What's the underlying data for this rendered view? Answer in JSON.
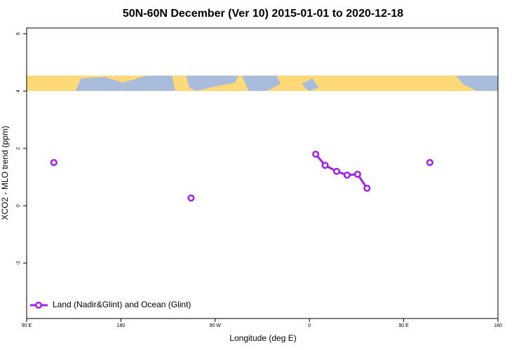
{
  "chart_data": {
    "type": "line",
    "title": "50N-60N December (Ver 10)   2015-01-01 to 2020-12-18",
    "xlabel": "Longitude (deg E)",
    "ylabel": "XCO2 - MLO trend (ppm)",
    "x": [
      -244,
      -180,
      -113,
      -50,
      6,
      15,
      26,
      36,
      46,
      55,
      85,
      115
    ],
    "series": [
      {
        "name": "Land (Nadir&Glint) and Ocean (Glint)",
        "color": "#a020f0",
        "values": [
          1.51,
          null,
          0.27,
          null,
          1.8,
          1.41,
          1.2,
          1.07,
          1.1,
          0.61,
          null,
          1.51
        ]
      }
    ],
    "xlim": [
      -270,
      180
    ],
    "xticks": [
      {
        "value": -270,
        "label": "90 E"
      },
      {
        "value": -180,
        "label": "180"
      },
      {
        "value": -90,
        "label": "90 W"
      },
      0,
      {
        "value": 90,
        "label": "90 E"
      },
      180
    ],
    "ylim": [
      -3.93,
      6.2
    ],
    "yticks": [
      -2,
      0,
      2,
      4,
      6
    ],
    "legend": "bottom-left"
  }
}
